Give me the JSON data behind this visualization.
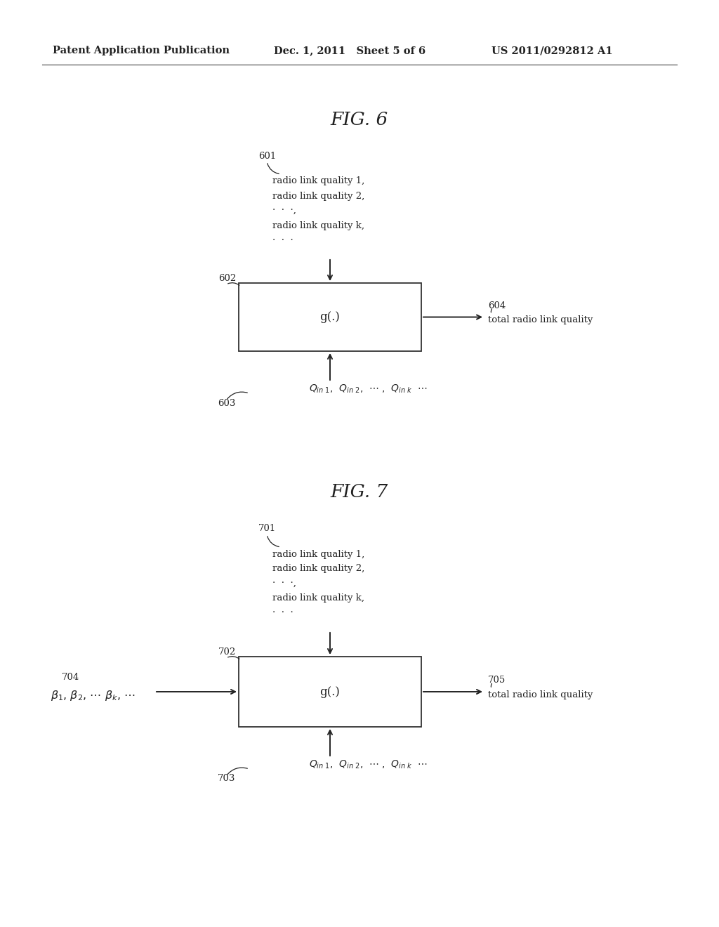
{
  "header_left": "Patent Application Publication",
  "header_mid": "Dec. 1, 2011   Sheet 5 of 6",
  "header_right": "US 2011/0292812 A1",
  "fig6_title": "FIG. 6",
  "fig7_title": "FIG. 7",
  "fig6": {
    "label_601": "601",
    "input_lines": [
      "radio link quality 1,",
      "radio link quality 2,",
      "·  ·  ·,",
      "radio link quality k,",
      "·  ·  ·"
    ],
    "label_602": "602",
    "box_text": "g(.)",
    "label_603": "603",
    "label_604": "604",
    "output_text": "total radio link quality"
  },
  "fig7": {
    "label_701": "701",
    "input_lines": [
      "radio link quality 1,",
      "radio link quality 2,",
      "·  ·  ·,",
      "radio link quality k,",
      "·  ·  ·"
    ],
    "label_702": "702",
    "box_text": "g(.)",
    "label_703": "703",
    "label_704": "704",
    "label_705": "705",
    "output_text": "total radio link quality"
  },
  "bg_color": "#ffffff",
  "text_color": "#222222",
  "box_edge_color": "#333333"
}
